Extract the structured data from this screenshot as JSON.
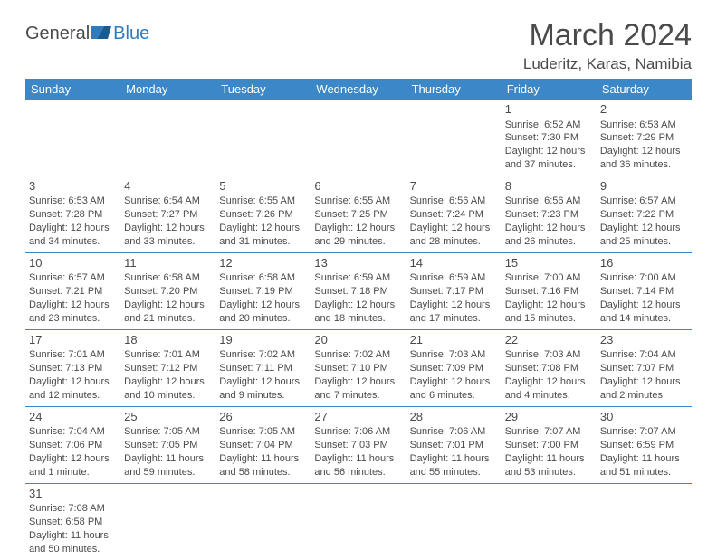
{
  "logo": {
    "general": "General",
    "blue": "Blue"
  },
  "title": "March 2024",
  "location": "Luderitz, Karas, Namibia",
  "colors": {
    "header_bg": "#3b87c8",
    "header_text": "#ffffff",
    "text": "#4a4a4a",
    "rule": "#3b87c8",
    "background": "#ffffff"
  },
  "weekdays": [
    "Sunday",
    "Monday",
    "Tuesday",
    "Wednesday",
    "Thursday",
    "Friday",
    "Saturday"
  ],
  "weeks": [
    [
      null,
      null,
      null,
      null,
      null,
      {
        "n": "1",
        "sr": "Sunrise: 6:52 AM",
        "ss": "Sunset: 7:30 PM",
        "dl": "Daylight: 12 hours and 37 minutes."
      },
      {
        "n": "2",
        "sr": "Sunrise: 6:53 AM",
        "ss": "Sunset: 7:29 PM",
        "dl": "Daylight: 12 hours and 36 minutes."
      }
    ],
    [
      {
        "n": "3",
        "sr": "Sunrise: 6:53 AM",
        "ss": "Sunset: 7:28 PM",
        "dl": "Daylight: 12 hours and 34 minutes."
      },
      {
        "n": "4",
        "sr": "Sunrise: 6:54 AM",
        "ss": "Sunset: 7:27 PM",
        "dl": "Daylight: 12 hours and 33 minutes."
      },
      {
        "n": "5",
        "sr": "Sunrise: 6:55 AM",
        "ss": "Sunset: 7:26 PM",
        "dl": "Daylight: 12 hours and 31 minutes."
      },
      {
        "n": "6",
        "sr": "Sunrise: 6:55 AM",
        "ss": "Sunset: 7:25 PM",
        "dl": "Daylight: 12 hours and 29 minutes."
      },
      {
        "n": "7",
        "sr": "Sunrise: 6:56 AM",
        "ss": "Sunset: 7:24 PM",
        "dl": "Daylight: 12 hours and 28 minutes."
      },
      {
        "n": "8",
        "sr": "Sunrise: 6:56 AM",
        "ss": "Sunset: 7:23 PM",
        "dl": "Daylight: 12 hours and 26 minutes."
      },
      {
        "n": "9",
        "sr": "Sunrise: 6:57 AM",
        "ss": "Sunset: 7:22 PM",
        "dl": "Daylight: 12 hours and 25 minutes."
      }
    ],
    [
      {
        "n": "10",
        "sr": "Sunrise: 6:57 AM",
        "ss": "Sunset: 7:21 PM",
        "dl": "Daylight: 12 hours and 23 minutes."
      },
      {
        "n": "11",
        "sr": "Sunrise: 6:58 AM",
        "ss": "Sunset: 7:20 PM",
        "dl": "Daylight: 12 hours and 21 minutes."
      },
      {
        "n": "12",
        "sr": "Sunrise: 6:58 AM",
        "ss": "Sunset: 7:19 PM",
        "dl": "Daylight: 12 hours and 20 minutes."
      },
      {
        "n": "13",
        "sr": "Sunrise: 6:59 AM",
        "ss": "Sunset: 7:18 PM",
        "dl": "Daylight: 12 hours and 18 minutes."
      },
      {
        "n": "14",
        "sr": "Sunrise: 6:59 AM",
        "ss": "Sunset: 7:17 PM",
        "dl": "Daylight: 12 hours and 17 minutes."
      },
      {
        "n": "15",
        "sr": "Sunrise: 7:00 AM",
        "ss": "Sunset: 7:16 PM",
        "dl": "Daylight: 12 hours and 15 minutes."
      },
      {
        "n": "16",
        "sr": "Sunrise: 7:00 AM",
        "ss": "Sunset: 7:14 PM",
        "dl": "Daylight: 12 hours and 14 minutes."
      }
    ],
    [
      {
        "n": "17",
        "sr": "Sunrise: 7:01 AM",
        "ss": "Sunset: 7:13 PM",
        "dl": "Daylight: 12 hours and 12 minutes."
      },
      {
        "n": "18",
        "sr": "Sunrise: 7:01 AM",
        "ss": "Sunset: 7:12 PM",
        "dl": "Daylight: 12 hours and 10 minutes."
      },
      {
        "n": "19",
        "sr": "Sunrise: 7:02 AM",
        "ss": "Sunset: 7:11 PM",
        "dl": "Daylight: 12 hours and 9 minutes."
      },
      {
        "n": "20",
        "sr": "Sunrise: 7:02 AM",
        "ss": "Sunset: 7:10 PM",
        "dl": "Daylight: 12 hours and 7 minutes."
      },
      {
        "n": "21",
        "sr": "Sunrise: 7:03 AM",
        "ss": "Sunset: 7:09 PM",
        "dl": "Daylight: 12 hours and 6 minutes."
      },
      {
        "n": "22",
        "sr": "Sunrise: 7:03 AM",
        "ss": "Sunset: 7:08 PM",
        "dl": "Daylight: 12 hours and 4 minutes."
      },
      {
        "n": "23",
        "sr": "Sunrise: 7:04 AM",
        "ss": "Sunset: 7:07 PM",
        "dl": "Daylight: 12 hours and 2 minutes."
      }
    ],
    [
      {
        "n": "24",
        "sr": "Sunrise: 7:04 AM",
        "ss": "Sunset: 7:06 PM",
        "dl": "Daylight: 12 hours and 1 minute."
      },
      {
        "n": "25",
        "sr": "Sunrise: 7:05 AM",
        "ss": "Sunset: 7:05 PM",
        "dl": "Daylight: 11 hours and 59 minutes."
      },
      {
        "n": "26",
        "sr": "Sunrise: 7:05 AM",
        "ss": "Sunset: 7:04 PM",
        "dl": "Daylight: 11 hours and 58 minutes."
      },
      {
        "n": "27",
        "sr": "Sunrise: 7:06 AM",
        "ss": "Sunset: 7:03 PM",
        "dl": "Daylight: 11 hours and 56 minutes."
      },
      {
        "n": "28",
        "sr": "Sunrise: 7:06 AM",
        "ss": "Sunset: 7:01 PM",
        "dl": "Daylight: 11 hours and 55 minutes."
      },
      {
        "n": "29",
        "sr": "Sunrise: 7:07 AM",
        "ss": "Sunset: 7:00 PM",
        "dl": "Daylight: 11 hours and 53 minutes."
      },
      {
        "n": "30",
        "sr": "Sunrise: 7:07 AM",
        "ss": "Sunset: 6:59 PM",
        "dl": "Daylight: 11 hours and 51 minutes."
      }
    ],
    [
      {
        "n": "31",
        "sr": "Sunrise: 7:08 AM",
        "ss": "Sunset: 6:58 PM",
        "dl": "Daylight: 11 hours and 50 minutes."
      },
      null,
      null,
      null,
      null,
      null,
      null
    ]
  ]
}
